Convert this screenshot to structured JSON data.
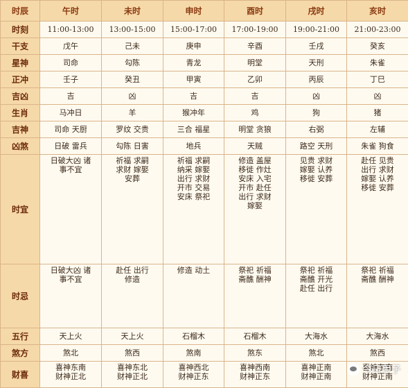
{
  "header": {
    "corner": "时辰",
    "columns": [
      "午时",
      "未时",
      "申时",
      "酉时",
      "戌时",
      "亥时"
    ]
  },
  "rows": [
    {
      "label": "时刻",
      "cells": [
        "11:00-13:00",
        "13:00-15:00",
        "15:00-17:00",
        "17:00-19:00",
        "19:00-21:00",
        "21:00-23:00"
      ]
    },
    {
      "label": "干支",
      "cells": [
        "戊午",
        "己未",
        "庚申",
        "辛酉",
        "壬戌",
        "癸亥"
      ]
    },
    {
      "label": "星神",
      "cells": [
        "司命",
        "勾陈",
        "青龙",
        "明堂",
        "天刑",
        "朱雀"
      ]
    },
    {
      "label": "正冲",
      "cells": [
        "壬子",
        "癸丑",
        "甲寅",
        "乙卯",
        "丙辰",
        "丁巳"
      ]
    },
    {
      "label": "吉凶",
      "cells": [
        "吉",
        "凶",
        "吉",
        "吉",
        "凶",
        "凶"
      ]
    },
    {
      "label": "生肖",
      "cells": [
        "马冲日",
        "羊",
        "猴冲年",
        "鸡",
        "狗",
        "猪"
      ]
    },
    {
      "label": "吉神",
      "cells": [
        "司命 天厨",
        "罗纹 交贵",
        "三合 福星",
        "明堂 贪狼",
        "右弼",
        "左辅"
      ]
    },
    {
      "label": "凶煞",
      "cells": [
        "日破 雷兵",
        "勾陈 日害",
        "地兵",
        "天贼",
        "路空 天刑",
        "朱雀 狗食"
      ]
    },
    {
      "label": "时宜",
      "cells": [
        [
          "日破大凶 诸",
          "事不宜"
        ],
        [
          "祈福 求嗣",
          "求财 嫁娶",
          "安葬"
        ],
        [
          "祈福 求嗣",
          "纳采 嫁娶",
          "出行 求财",
          "开市 交易",
          "安床 祭祀"
        ],
        [
          "修造 盖屋",
          "移徙 作灶",
          "安床 入宅",
          "开市 赴任",
          "出行 求财",
          "嫁娶"
        ],
        [
          "见贵 求财",
          "嫁娶 认养",
          "移徙 安葬"
        ],
        [
          "赴任 见贵",
          "出行 求财",
          "嫁娶 认养",
          "移徙 安葬"
        ]
      ]
    },
    {
      "label": "时忌",
      "cells": [
        [
          "日破大凶 诸",
          "事不宜"
        ],
        [
          "赴任 出行",
          "修造"
        ],
        [
          "修造 动土"
        ],
        [
          "祭祀 祈福",
          "斋醮 酬神"
        ],
        [
          "祭祀 祈福",
          "斋醮 开光",
          "赴任 出行"
        ],
        [
          "祭祀 祈福",
          "斋醮 酬神"
        ]
      ]
    },
    {
      "label": "五行",
      "cells": [
        "天上火",
        "天上火",
        "石榴木",
        "石榴木",
        "大海水",
        "大海水"
      ]
    },
    {
      "label": "煞方",
      "cells": [
        "煞北",
        "煞西",
        "煞南",
        "煞东",
        "煞北",
        "煞西"
      ]
    },
    {
      "label": "财喜",
      "cells": [
        [
          "喜神东南",
          "财神正北"
        ],
        [
          "喜神东北",
          "财神正北"
        ],
        [
          "喜神西北",
          "财神正东"
        ],
        [
          "喜神西南",
          "财神正东"
        ],
        [
          "喜神正南",
          "财神正南"
        ],
        [
          "喜神东南",
          "财神正南"
        ]
      ]
    }
  ],
  "watermark": {
    "text": "今日甲子",
    "icon": "wechat-icon"
  },
  "colors": {
    "header_bg": "#f6d9a8",
    "border": "#d9b48a",
    "cell_bg": "#fffaf0",
    "header_text": "#8a3a12"
  }
}
